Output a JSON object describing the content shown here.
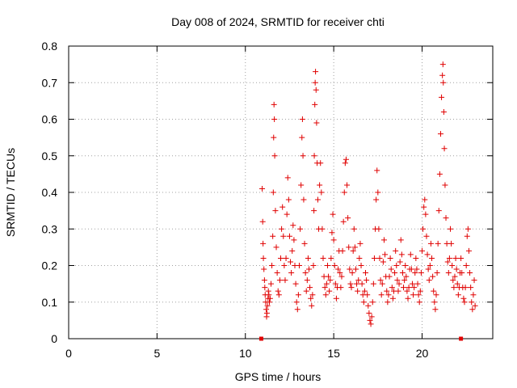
{
  "chart_data": {
    "type": "scatter",
    "title": "Day 008 of 2024, SRMTID for receiver chti",
    "xlabel": "GPS time / hours",
    "ylabel": "SRMTID / TECUs",
    "xlim": [
      0,
      24
    ],
    "ylim": [
      0,
      0.8
    ],
    "xticks": [
      "0",
      "5",
      "10",
      "15",
      "20"
    ],
    "xtick_values": [
      0,
      5,
      10,
      15,
      20
    ],
    "yticks": [
      "0",
      "0.1",
      "0.2",
      "0.3",
      "0.4",
      "0.5",
      "0.6",
      "0.7",
      "0.8"
    ],
    "ytick_values": [
      0,
      0.1,
      0.2,
      0.3,
      0.4,
      0.5,
      0.6,
      0.7,
      0.8
    ],
    "grid": true,
    "marker": "+",
    "color": "#e00000",
    "baseline_markers": [
      {
        "x": 10.9,
        "y": 0
      },
      {
        "x": 22.2,
        "y": 0
      }
    ],
    "series": [
      {
        "name": "SRMTID",
        "points": [
          [
            10.95,
            0.41
          ],
          [
            10.98,
            0.32
          ],
          [
            11.0,
            0.26
          ],
          [
            11.02,
            0.22
          ],
          [
            11.05,
            0.19
          ],
          [
            11.08,
            0.16
          ],
          [
            11.1,
            0.14
          ],
          [
            11.12,
            0.12
          ],
          [
            11.15,
            0.1
          ],
          [
            11.18,
            0.08
          ],
          [
            11.2,
            0.06
          ],
          [
            11.22,
            0.07
          ],
          [
            11.25,
            0.09
          ],
          [
            11.28,
            0.11
          ],
          [
            11.3,
            0.13
          ],
          [
            11.33,
            0.12
          ],
          [
            11.36,
            0.1
          ],
          [
            11.4,
            0.11
          ],
          [
            11.45,
            0.15
          ],
          [
            11.5,
            0.2
          ],
          [
            11.55,
            0.28
          ],
          [
            11.58,
            0.4
          ],
          [
            11.6,
            0.55
          ],
          [
            11.62,
            0.64
          ],
          [
            11.64,
            0.6
          ],
          [
            11.66,
            0.5
          ],
          [
            11.7,
            0.35
          ],
          [
            11.75,
            0.25
          ],
          [
            11.8,
            0.18
          ],
          [
            11.85,
            0.13
          ],
          [
            11.9,
            0.12
          ],
          [
            11.95,
            0.16
          ],
          [
            12.0,
            0.22
          ],
          [
            12.05,
            0.3
          ],
          [
            12.1,
            0.36
          ],
          [
            12.15,
            0.28
          ],
          [
            12.2,
            0.2
          ],
          [
            12.25,
            0.16
          ],
          [
            12.3,
            0.22
          ],
          [
            12.35,
            0.34
          ],
          [
            12.4,
            0.44
          ],
          [
            12.45,
            0.38
          ],
          [
            12.5,
            0.28
          ],
          [
            12.55,
            0.21
          ],
          [
            12.6,
            0.18
          ],
          [
            12.65,
            0.24
          ],
          [
            12.7,
            0.31
          ],
          [
            12.75,
            0.27
          ],
          [
            12.8,
            0.2
          ],
          [
            12.85,
            0.15
          ],
          [
            12.9,
            0.1
          ],
          [
            12.95,
            0.08
          ],
          [
            13.0,
            0.12
          ],
          [
            13.05,
            0.2
          ],
          [
            13.1,
            0.3
          ],
          [
            13.15,
            0.42
          ],
          [
            13.2,
            0.55
          ],
          [
            13.23,
            0.6
          ],
          [
            13.26,
            0.5
          ],
          [
            13.3,
            0.38
          ],
          [
            13.35,
            0.26
          ],
          [
            13.4,
            0.18
          ],
          [
            13.45,
            0.13
          ],
          [
            13.5,
            0.16
          ],
          [
            13.55,
            0.22
          ],
          [
            13.6,
            0.19
          ],
          [
            13.65,
            0.14
          ],
          [
            13.7,
            0.11
          ],
          [
            13.75,
            0.09
          ],
          [
            13.8,
            0.12
          ],
          [
            13.85,
            0.2
          ],
          [
            13.88,
            0.35
          ],
          [
            13.9,
            0.5
          ],
          [
            13.93,
            0.64
          ],
          [
            13.95,
            0.7
          ],
          [
            13.97,
            0.73
          ],
          [
            14.0,
            0.68
          ],
          [
            14.03,
            0.59
          ],
          [
            14.06,
            0.48
          ],
          [
            14.1,
            0.38
          ],
          [
            14.15,
            0.3
          ],
          [
            14.2,
            0.42
          ],
          [
            14.25,
            0.48
          ],
          [
            14.3,
            0.4
          ],
          [
            14.35,
            0.3
          ],
          [
            14.4,
            0.22
          ],
          [
            14.45,
            0.17
          ],
          [
            14.5,
            0.14
          ],
          [
            14.55,
            0.12
          ],
          [
            14.6,
            0.15
          ],
          [
            14.65,
            0.2
          ],
          [
            14.7,
            0.17
          ],
          [
            14.75,
            0.13
          ],
          [
            14.8,
            0.16
          ],
          [
            14.85,
            0.22
          ],
          [
            14.9,
            0.29
          ],
          [
            14.95,
            0.34
          ],
          [
            15.0,
            0.27
          ],
          [
            15.05,
            0.2
          ],
          [
            15.1,
            0.15
          ],
          [
            15.15,
            0.11
          ],
          [
            15.2,
            0.14
          ],
          [
            15.25,
            0.19
          ],
          [
            15.3,
            0.24
          ],
          [
            15.35,
            0.18
          ],
          [
            15.4,
            0.14
          ],
          [
            15.45,
            0.17
          ],
          [
            15.5,
            0.24
          ],
          [
            15.55,
            0.32
          ],
          [
            15.6,
            0.4
          ],
          [
            15.65,
            0.48
          ],
          [
            15.7,
            0.49
          ],
          [
            15.75,
            0.42
          ],
          [
            15.8,
            0.33
          ],
          [
            15.85,
            0.25
          ],
          [
            15.9,
            0.19
          ],
          [
            15.95,
            0.15
          ],
          [
            16.0,
            0.14
          ],
          [
            16.05,
            0.18
          ],
          [
            16.1,
            0.24
          ],
          [
            16.15,
            0.3
          ],
          [
            16.2,
            0.25
          ],
          [
            16.25,
            0.19
          ],
          [
            16.3,
            0.15
          ],
          [
            16.35,
            0.13
          ],
          [
            16.4,
            0.16
          ],
          [
            16.45,
            0.22
          ],
          [
            16.5,
            0.26
          ],
          [
            16.55,
            0.2
          ],
          [
            16.6,
            0.15
          ],
          [
            16.65,
            0.12
          ],
          [
            16.7,
            0.1
          ],
          [
            16.75,
            0.13
          ],
          [
            16.8,
            0.18
          ],
          [
            16.85,
            0.16
          ],
          [
            16.9,
            0.12
          ],
          [
            16.95,
            0.09
          ],
          [
            17.0,
            0.07
          ],
          [
            17.05,
            0.05
          ],
          [
            17.1,
            0.04
          ],
          [
            17.15,
            0.06
          ],
          [
            17.2,
            0.1
          ],
          [
            17.25,
            0.15
          ],
          [
            17.3,
            0.22
          ],
          [
            17.35,
            0.3
          ],
          [
            17.4,
            0.38
          ],
          [
            17.45,
            0.46
          ],
          [
            17.5,
            0.4
          ],
          [
            17.55,
            0.3
          ],
          [
            17.6,
            0.22
          ],
          [
            17.65,
            0.16
          ],
          [
            17.7,
            0.12
          ],
          [
            17.75,
            0.15
          ],
          [
            17.8,
            0.21
          ],
          [
            17.85,
            0.27
          ],
          [
            17.9,
            0.23
          ],
          [
            17.95,
            0.17
          ],
          [
            18.0,
            0.13
          ],
          [
            18.05,
            0.1
          ],
          [
            18.1,
            0.12
          ],
          [
            18.15,
            0.17
          ],
          [
            18.2,
            0.22
          ],
          [
            18.25,
            0.19
          ],
          [
            18.3,
            0.14
          ],
          [
            18.35,
            0.11
          ],
          [
            18.4,
            0.13
          ],
          [
            18.45,
            0.18
          ],
          [
            18.5,
            0.24
          ],
          [
            18.55,
            0.2
          ],
          [
            18.6,
            0.16
          ],
          [
            18.65,
            0.13
          ],
          [
            18.7,
            0.15
          ],
          [
            18.75,
            0.21
          ],
          [
            18.8,
            0.27
          ],
          [
            18.85,
            0.23
          ],
          [
            18.9,
            0.18
          ],
          [
            18.95,
            0.14
          ],
          [
            19.0,
            0.16
          ],
          [
            19.05,
            0.2
          ],
          [
            19.1,
            0.17
          ],
          [
            19.15,
            0.13
          ],
          [
            19.2,
            0.11
          ],
          [
            19.25,
            0.14
          ],
          [
            19.3,
            0.19
          ],
          [
            19.35,
            0.23
          ],
          [
            19.4,
            0.19
          ],
          [
            19.45,
            0.15
          ],
          [
            19.5,
            0.12
          ],
          [
            19.55,
            0.14
          ],
          [
            19.6,
            0.18
          ],
          [
            19.65,
            0.22
          ],
          [
            19.7,
            0.19
          ],
          [
            19.75,
            0.15
          ],
          [
            19.8,
            0.12
          ],
          [
            19.85,
            0.1
          ],
          [
            19.9,
            0.13
          ],
          [
            19.95,
            0.18
          ],
          [
            20.0,
            0.24
          ],
          [
            20.05,
            0.3
          ],
          [
            20.1,
            0.36
          ],
          [
            20.15,
            0.38
          ],
          [
            20.2,
            0.34
          ],
          [
            20.25,
            0.28
          ],
          [
            20.3,
            0.23
          ],
          [
            20.35,
            0.19
          ],
          [
            20.4,
            0.16
          ],
          [
            20.45,
            0.2
          ],
          [
            20.5,
            0.26
          ],
          [
            20.55,
            0.22
          ],
          [
            20.6,
            0.17
          ],
          [
            20.65,
            0.13
          ],
          [
            20.7,
            0.1
          ],
          [
            20.75,
            0.08
          ],
          [
            20.8,
            0.12
          ],
          [
            20.85,
            0.18
          ],
          [
            20.9,
            0.26
          ],
          [
            20.95,
            0.35
          ],
          [
            21.0,
            0.45
          ],
          [
            21.05,
            0.56
          ],
          [
            21.1,
            0.66
          ],
          [
            21.15,
            0.72
          ],
          [
            21.18,
            0.75
          ],
          [
            21.2,
            0.7
          ],
          [
            21.23,
            0.62
          ],
          [
            21.26,
            0.52
          ],
          [
            21.3,
            0.42
          ],
          [
            21.35,
            0.33
          ],
          [
            21.4,
            0.26
          ],
          [
            21.45,
            0.21
          ],
          [
            21.5,
            0.18
          ],
          [
            21.55,
            0.22
          ],
          [
            21.6,
            0.3
          ],
          [
            21.65,
            0.26
          ],
          [
            21.7,
            0.2
          ],
          [
            21.75,
            0.16
          ],
          [
            21.8,
            0.14
          ],
          [
            21.85,
            0.17
          ],
          [
            21.9,
            0.22
          ],
          [
            21.95,
            0.19
          ],
          [
            22.0,
            0.15
          ],
          [
            22.05,
            0.12
          ],
          [
            22.1,
            0.14
          ],
          [
            22.15,
            0.18
          ],
          [
            22.2,
            0.22
          ],
          [
            22.25,
            0.18
          ],
          [
            22.3,
            0.14
          ],
          [
            22.35,
            0.11
          ],
          [
            22.4,
            0.1
          ],
          [
            22.45,
            0.14
          ],
          [
            22.5,
            0.2
          ],
          [
            22.55,
            0.28
          ],
          [
            22.6,
            0.3
          ],
          [
            22.65,
            0.24
          ],
          [
            22.7,
            0.18
          ],
          [
            22.75,
            0.14
          ],
          [
            22.8,
            0.1
          ],
          [
            22.85,
            0.08
          ],
          [
            22.9,
            0.12
          ],
          [
            22.95,
            0.16
          ],
          [
            23.0,
            0.09
          ]
        ]
      }
    ]
  }
}
